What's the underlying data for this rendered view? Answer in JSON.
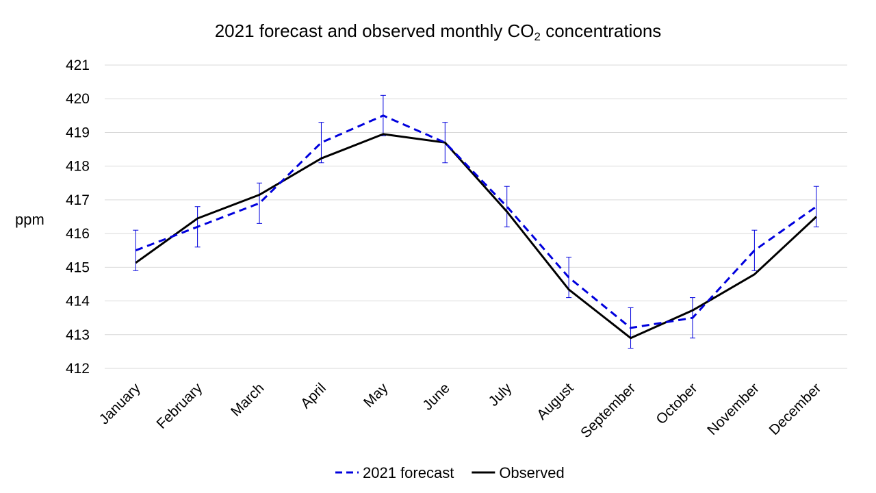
{
  "chart_data": {
    "type": "line",
    "title": {
      "text": "2021 forecast and observed monthly CO",
      "subscript": "2",
      "suffix": " concentrations"
    },
    "ylabel": "ppm",
    "xlabel": "",
    "categories": [
      "January",
      "February",
      "March",
      "April",
      "May",
      "June",
      "July",
      "August",
      "September",
      "October",
      "November",
      "December"
    ],
    "ylim": [
      412,
      421
    ],
    "yticks": [
      412,
      413,
      414,
      415,
      416,
      417,
      418,
      419,
      420,
      421
    ],
    "grid": "horizontal",
    "legend_position": "bottom",
    "series": [
      {
        "name": "2021 forecast",
        "style": "dashed",
        "color": "#0000dd",
        "values": [
          415.5,
          416.2,
          416.9,
          418.7,
          419.5,
          418.7,
          416.8,
          414.7,
          413.2,
          413.5,
          415.5,
          416.8
        ],
        "error_low": [
          414.9,
          415.6,
          416.3,
          418.1,
          418.9,
          418.1,
          416.2,
          414.1,
          412.6,
          412.9,
          414.9,
          416.2
        ],
        "error_high": [
          416.1,
          416.8,
          417.5,
          419.3,
          420.1,
          419.3,
          417.4,
          415.3,
          413.8,
          414.1,
          416.1,
          417.4
        ]
      },
      {
        "name": "Observed",
        "style": "solid",
        "color": "#000000",
        "values": [
          415.13,
          416.45,
          417.15,
          418.23,
          418.95,
          418.7,
          416.65,
          414.34,
          412.9,
          413.72,
          414.79,
          416.5
        ]
      }
    ]
  }
}
